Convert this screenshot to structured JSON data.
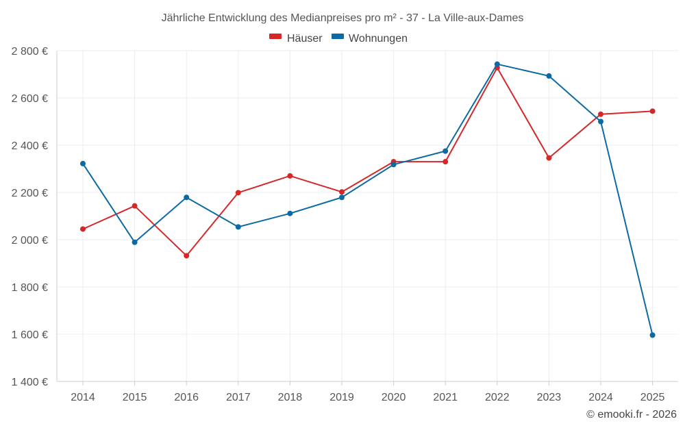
{
  "chart_data": {
    "type": "line",
    "title": "Jährliche Entwicklung des Medianpreises pro m² - 37 - La Ville-aux-Dames",
    "categories": [
      "2014",
      "2015",
      "2016",
      "2017",
      "2018",
      "2019",
      "2020",
      "2021",
      "2022",
      "2023",
      "2024",
      "2025"
    ],
    "series": [
      {
        "name": "Häuser",
        "color": "#d62728",
        "values": [
          2045,
          2143,
          1932,
          2199,
          2270,
          2202,
          2330,
          2330,
          2728,
          2346,
          2531,
          2544
        ]
      },
      {
        "name": "Wohnungen",
        "color": "#0b6aa2",
        "values": [
          2322,
          1989,
          2179,
          2054,
          2111,
          2179,
          2318,
          2375,
          2743,
          2693,
          2500,
          1596
        ]
      }
    ],
    "ylim": [
      1400,
      2800
    ],
    "yticks": [
      1400,
      1600,
      1800,
      2000,
      2200,
      2400,
      2600,
      2800
    ],
    "ytick_labels": [
      "1 400 €",
      "1 600 €",
      "1 800 €",
      "2 000 €",
      "2 200 €",
      "2 400 €",
      "2 600 €",
      "2 800 €"
    ],
    "xlabel": "",
    "ylabel": "",
    "grid": true,
    "legend_position": "top-center"
  },
  "credit": "© emooki.fr - 2026"
}
